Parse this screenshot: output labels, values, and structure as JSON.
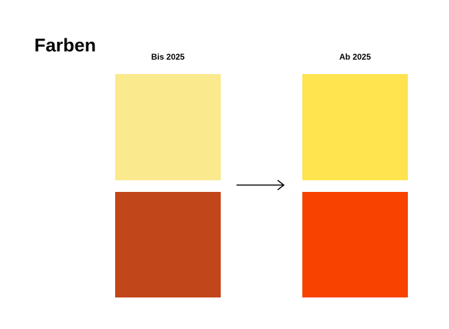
{
  "title": "Farben",
  "columns": [
    {
      "label": "Bis 2025",
      "swatches": [
        {
          "color": "#fbe98d"
        },
        {
          "color": "#c1461a"
        }
      ]
    },
    {
      "label": "Ab 2025",
      "swatches": [
        {
          "color": "#ffe34f"
        },
        {
          "color": "#f84300"
        }
      ]
    }
  ]
}
